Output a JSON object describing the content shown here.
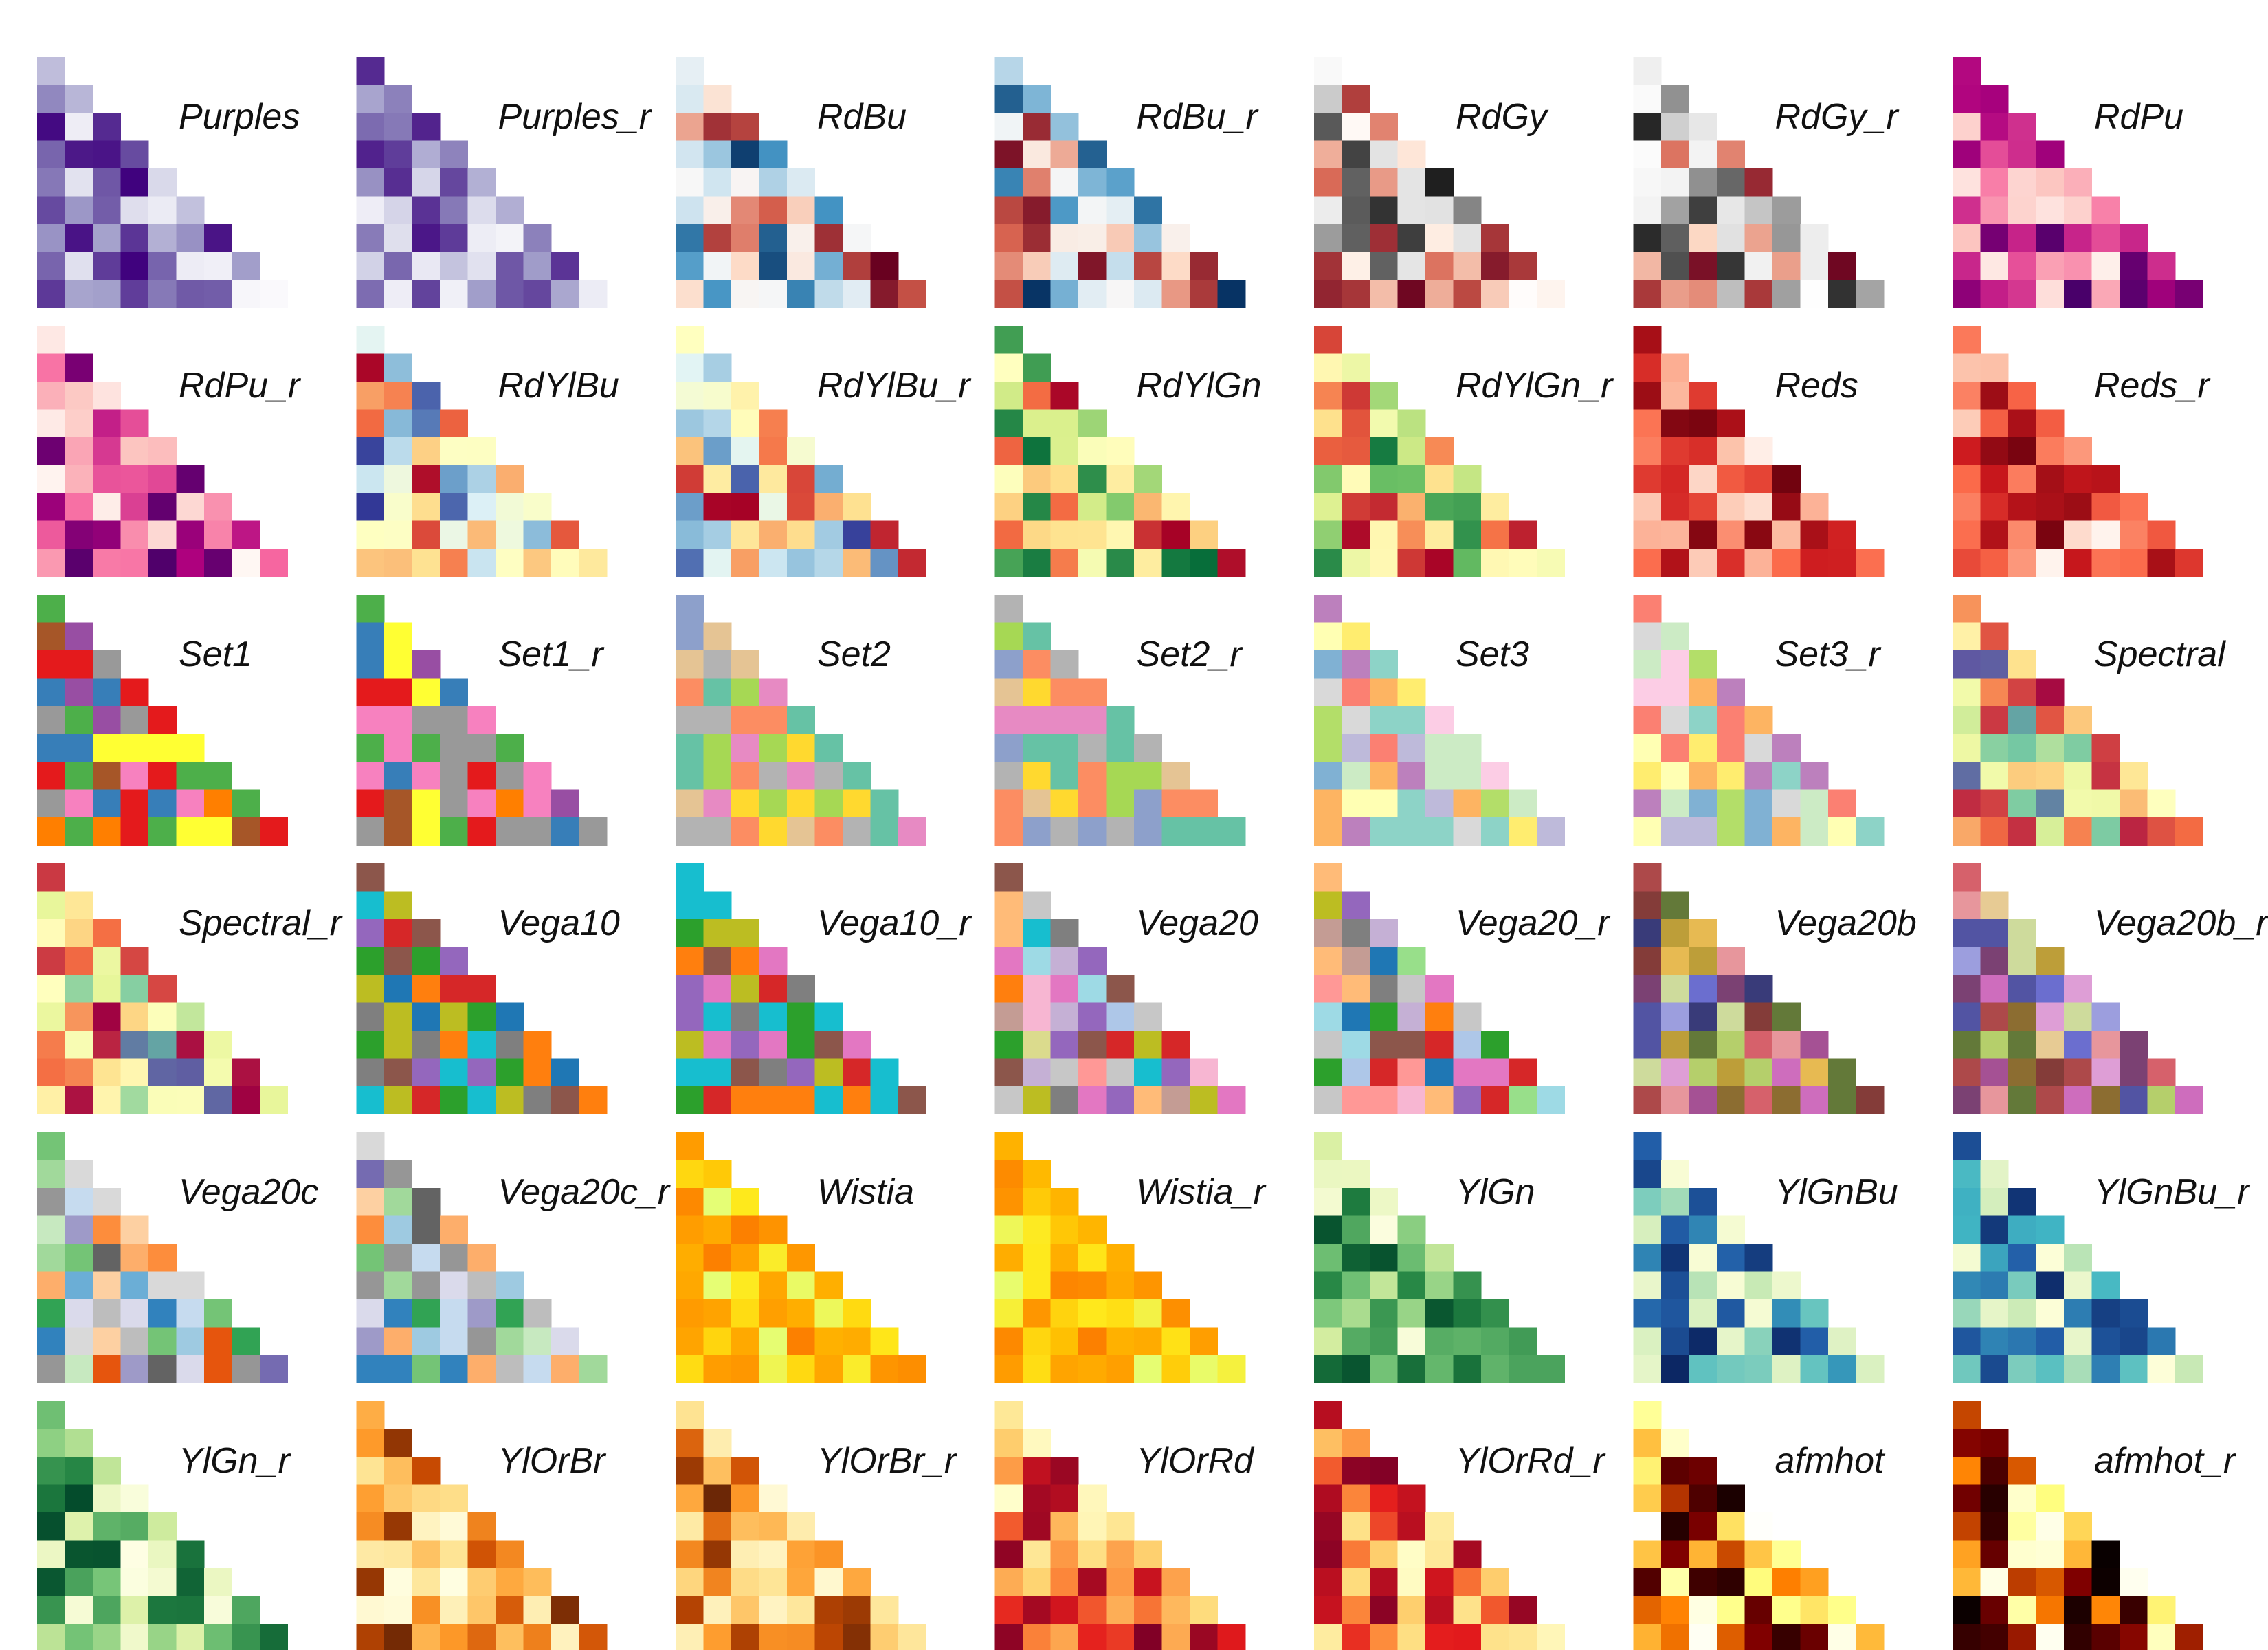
{
  "chart_data": {
    "type": "heatmap",
    "description_of_layout": "grid of triangular colormap swatches",
    "grid": {
      "columns": 7,
      "rows": 6
    },
    "legend": "none",
    "panels": [
      {
        "name": "Purples",
        "colors": [
          "#fcfbfd",
          "#dadaeb",
          "#9e9ac8",
          "#6a51a3",
          "#3f007d"
        ]
      },
      {
        "name": "Purples_r",
        "colors": [
          "#3f007d",
          "#6a51a3",
          "#9e9ac8",
          "#dadaeb",
          "#fcfbfd"
        ]
      },
      {
        "name": "RdBu",
        "colors": [
          "#67001f",
          "#d6604d",
          "#fddbc7",
          "#f7f7f7",
          "#d1e5f0",
          "#4393c3",
          "#053061"
        ]
      },
      {
        "name": "RdBu_r",
        "colors": [
          "#053061",
          "#4393c3",
          "#d1e5f0",
          "#f7f7f7",
          "#fddbc7",
          "#d6604d",
          "#67001f"
        ]
      },
      {
        "name": "RdGy",
        "colors": [
          "#67001f",
          "#d6604d",
          "#fddbc7",
          "#ffffff",
          "#e0e0e0",
          "#878787",
          "#1a1a1a"
        ]
      },
      {
        "name": "RdGy_r",
        "colors": [
          "#1a1a1a",
          "#878787",
          "#e0e0e0",
          "#ffffff",
          "#fddbc7",
          "#d6604d",
          "#67001f"
        ]
      },
      {
        "name": "RdPu",
        "colors": [
          "#fff7f3",
          "#fcc5c0",
          "#f768a1",
          "#ae017e",
          "#49006a"
        ]
      },
      {
        "name": "RdPu_r",
        "colors": [
          "#49006a",
          "#ae017e",
          "#f768a1",
          "#fcc5c0",
          "#fff7f3"
        ]
      },
      {
        "name": "RdYlBu",
        "colors": [
          "#a50026",
          "#f46d43",
          "#fee090",
          "#ffffbf",
          "#e0f3f8",
          "#74add1",
          "#313695"
        ]
      },
      {
        "name": "RdYlBu_r",
        "colors": [
          "#313695",
          "#74add1",
          "#e0f3f8",
          "#ffffbf",
          "#fee090",
          "#f46d43",
          "#a50026"
        ]
      },
      {
        "name": "RdYlGn",
        "colors": [
          "#a50026",
          "#f46d43",
          "#fee08b",
          "#ffffbf",
          "#d9ef8b",
          "#66bd63",
          "#006837"
        ]
      },
      {
        "name": "RdYlGn_r",
        "colors": [
          "#006837",
          "#66bd63",
          "#d9ef8b",
          "#ffffbf",
          "#fee08b",
          "#f46d43",
          "#a50026"
        ]
      },
      {
        "name": "Reds",
        "colors": [
          "#fff5f0",
          "#fcbba1",
          "#fb6a4a",
          "#cb181d",
          "#67000d"
        ]
      },
      {
        "name": "Reds_r",
        "colors": [
          "#67000d",
          "#cb181d",
          "#fb6a4a",
          "#fcbba1",
          "#fff5f0"
        ]
      },
      {
        "name": "Set1",
        "colors": [
          "#e41a1c",
          "#377eb8",
          "#4daf4a",
          "#984ea3",
          "#ff7f00",
          "#ffff33",
          "#a65628",
          "#f781bf",
          "#999999"
        ]
      },
      {
        "name": "Set1_r",
        "colors": [
          "#999999",
          "#f781bf",
          "#a65628",
          "#ffff33",
          "#ff7f00",
          "#984ea3",
          "#4daf4a",
          "#377eb8",
          "#e41a1c"
        ]
      },
      {
        "name": "Set2",
        "colors": [
          "#66c2a5",
          "#fc8d62",
          "#8da0cb",
          "#e78ac3",
          "#a6d854",
          "#ffd92f",
          "#e5c494",
          "#b3b3b3"
        ]
      },
      {
        "name": "Set2_r",
        "colors": [
          "#b3b3b3",
          "#e5c494",
          "#ffd92f",
          "#a6d854",
          "#e78ac3",
          "#8da0cb",
          "#fc8d62",
          "#66c2a5"
        ]
      },
      {
        "name": "Set3",
        "colors": [
          "#8dd3c7",
          "#ffffb3",
          "#bebada",
          "#fb8072",
          "#80b1d3",
          "#fdb462",
          "#b3de69",
          "#fccde5",
          "#d9d9d9",
          "#bc80bd",
          "#ccebc5",
          "#ffed6f"
        ]
      },
      {
        "name": "Set3_r",
        "colors": [
          "#ffed6f",
          "#ccebc5",
          "#bc80bd",
          "#d9d9d9",
          "#fccde5",
          "#b3de69",
          "#fdb462",
          "#80b1d3",
          "#fb8072",
          "#bebada",
          "#ffffb3",
          "#8dd3c7"
        ]
      },
      {
        "name": "Spectral",
        "colors": [
          "#9e0142",
          "#f46d43",
          "#fee08b",
          "#ffffbf",
          "#e6f598",
          "#66c2a5",
          "#5e4fa2"
        ]
      },
      {
        "name": "Spectral_r",
        "colors": [
          "#5e4fa2",
          "#66c2a5",
          "#e6f598",
          "#ffffbf",
          "#fee08b",
          "#f46d43",
          "#9e0142"
        ]
      },
      {
        "name": "Vega10",
        "colors": [
          "#1f77b4",
          "#ff7f0e",
          "#2ca02c",
          "#d62728",
          "#9467bd",
          "#8c564b",
          "#e377c2",
          "#7f7f7f",
          "#bcbd22",
          "#17becf"
        ]
      },
      {
        "name": "Vega10_r",
        "colors": [
          "#17becf",
          "#bcbd22",
          "#7f7f7f",
          "#e377c2",
          "#8c564b",
          "#9467bd",
          "#d62728",
          "#2ca02c",
          "#ff7f0e",
          "#1f77b4"
        ]
      },
      {
        "name": "Vega20",
        "colors": [
          "#1f77b4",
          "#aec7e8",
          "#ff7f0e",
          "#ffbb78",
          "#2ca02c",
          "#98df8a",
          "#d62728",
          "#ff9896",
          "#9467bd",
          "#c5b0d5",
          "#8c564b",
          "#c49c94",
          "#e377c2",
          "#f7b6d2",
          "#7f7f7f",
          "#c7c7c7",
          "#bcbd22",
          "#dbdb8d",
          "#17becf",
          "#9edae5"
        ]
      },
      {
        "name": "Vega20_r",
        "colors": [
          "#9edae5",
          "#17becf",
          "#dbdb8d",
          "#bcbd22",
          "#c7c7c7",
          "#7f7f7f",
          "#f7b6d2",
          "#e377c2",
          "#c49c94",
          "#8c564b",
          "#c5b0d5",
          "#9467bd",
          "#ff9896",
          "#d62728",
          "#98df8a",
          "#2ca02c",
          "#ffbb78",
          "#ff7f0e",
          "#aec7e8",
          "#1f77b4"
        ]
      },
      {
        "name": "Vega20b",
        "colors": [
          "#393b79",
          "#5254a3",
          "#6b6ecf",
          "#9c9ede",
          "#637939",
          "#8ca252",
          "#b5cf6b",
          "#cedb9c",
          "#8c6d31",
          "#bd9e39",
          "#e7ba52",
          "#e7cb94",
          "#843c39",
          "#ad494a",
          "#d6616b",
          "#e7969c",
          "#7b4173",
          "#a55194",
          "#ce6dbd",
          "#de9ed6"
        ]
      },
      {
        "name": "Vega20b_r",
        "colors": [
          "#de9ed6",
          "#ce6dbd",
          "#a55194",
          "#7b4173",
          "#e7969c",
          "#d6616b",
          "#ad494a",
          "#843c39",
          "#e7cb94",
          "#e7ba52",
          "#bd9e39",
          "#8c6d31",
          "#cedb9c",
          "#b5cf6b",
          "#8ca252",
          "#637939",
          "#9c9ede",
          "#6b6ecf",
          "#5254a3",
          "#393b79"
        ]
      },
      {
        "name": "Vega20c",
        "colors": [
          "#3182bd",
          "#6baed6",
          "#9ecae1",
          "#c6dbef",
          "#e6550d",
          "#fd8d3c",
          "#fdae6b",
          "#fdd0a2",
          "#31a354",
          "#74c476",
          "#a1d99b",
          "#c7e9c0",
          "#756bb1",
          "#9e9ac8",
          "#bcbddc",
          "#dadaeb",
          "#636363",
          "#969696",
          "#bdbdbd",
          "#d9d9d9"
        ]
      },
      {
        "name": "Vega20c_r",
        "colors": [
          "#d9d9d9",
          "#bdbdbd",
          "#969696",
          "#636363",
          "#dadaeb",
          "#bcbddc",
          "#9e9ac8",
          "#756bb1",
          "#c7e9c0",
          "#a1d99b",
          "#74c476",
          "#31a354",
          "#fdd0a2",
          "#fdae6b",
          "#fd8d3c",
          "#e6550d",
          "#c6dbef",
          "#9ecae1",
          "#6baed6",
          "#3182bd"
        ]
      },
      {
        "name": "Wistia",
        "colors": [
          "#e4ff7a",
          "#ffe81a",
          "#ffbd00",
          "#ffa000",
          "#fc7f00"
        ]
      },
      {
        "name": "Wistia_r",
        "colors": [
          "#fc7f00",
          "#ffa000",
          "#ffbd00",
          "#ffe81a",
          "#e4ff7a"
        ]
      },
      {
        "name": "YlGn",
        "colors": [
          "#ffffe5",
          "#d9f0a3",
          "#78c679",
          "#238443",
          "#004529"
        ]
      },
      {
        "name": "YlGnBu",
        "colors": [
          "#ffffd9",
          "#c7e9b4",
          "#41b6c4",
          "#225ea8",
          "#081d58"
        ]
      },
      {
        "name": "YlGnBu_r",
        "colors": [
          "#081d58",
          "#225ea8",
          "#41b6c4",
          "#c7e9b4",
          "#ffffd9"
        ]
      },
      {
        "name": "YlGn_r",
        "colors": [
          "#004529",
          "#238443",
          "#78c679",
          "#d9f0a3",
          "#ffffe5"
        ]
      },
      {
        "name": "YlOrBr",
        "colors": [
          "#ffffe5",
          "#fee391",
          "#fe9929",
          "#cc4c02",
          "#662506"
        ]
      },
      {
        "name": "YlOrBr_r",
        "colors": [
          "#662506",
          "#cc4c02",
          "#fe9929",
          "#fee391",
          "#ffffe5"
        ]
      },
      {
        "name": "YlOrRd",
        "colors": [
          "#ffffcc",
          "#fed976",
          "#fd8d3c",
          "#e31a1c",
          "#800026"
        ]
      },
      {
        "name": "YlOrRd_r",
        "colors": [
          "#800026",
          "#e31a1c",
          "#fd8d3c",
          "#fed976",
          "#ffffcc"
        ]
      },
      {
        "name": "afmhot",
        "colors": [
          "#000000",
          "#800000",
          "#ff8000",
          "#ffff80",
          "#ffffff"
        ]
      },
      {
        "name": "afmhot_r",
        "colors": [
          "#ffffff",
          "#ffff80",
          "#ff8000",
          "#800000",
          "#000000"
        ]
      }
    ]
  }
}
